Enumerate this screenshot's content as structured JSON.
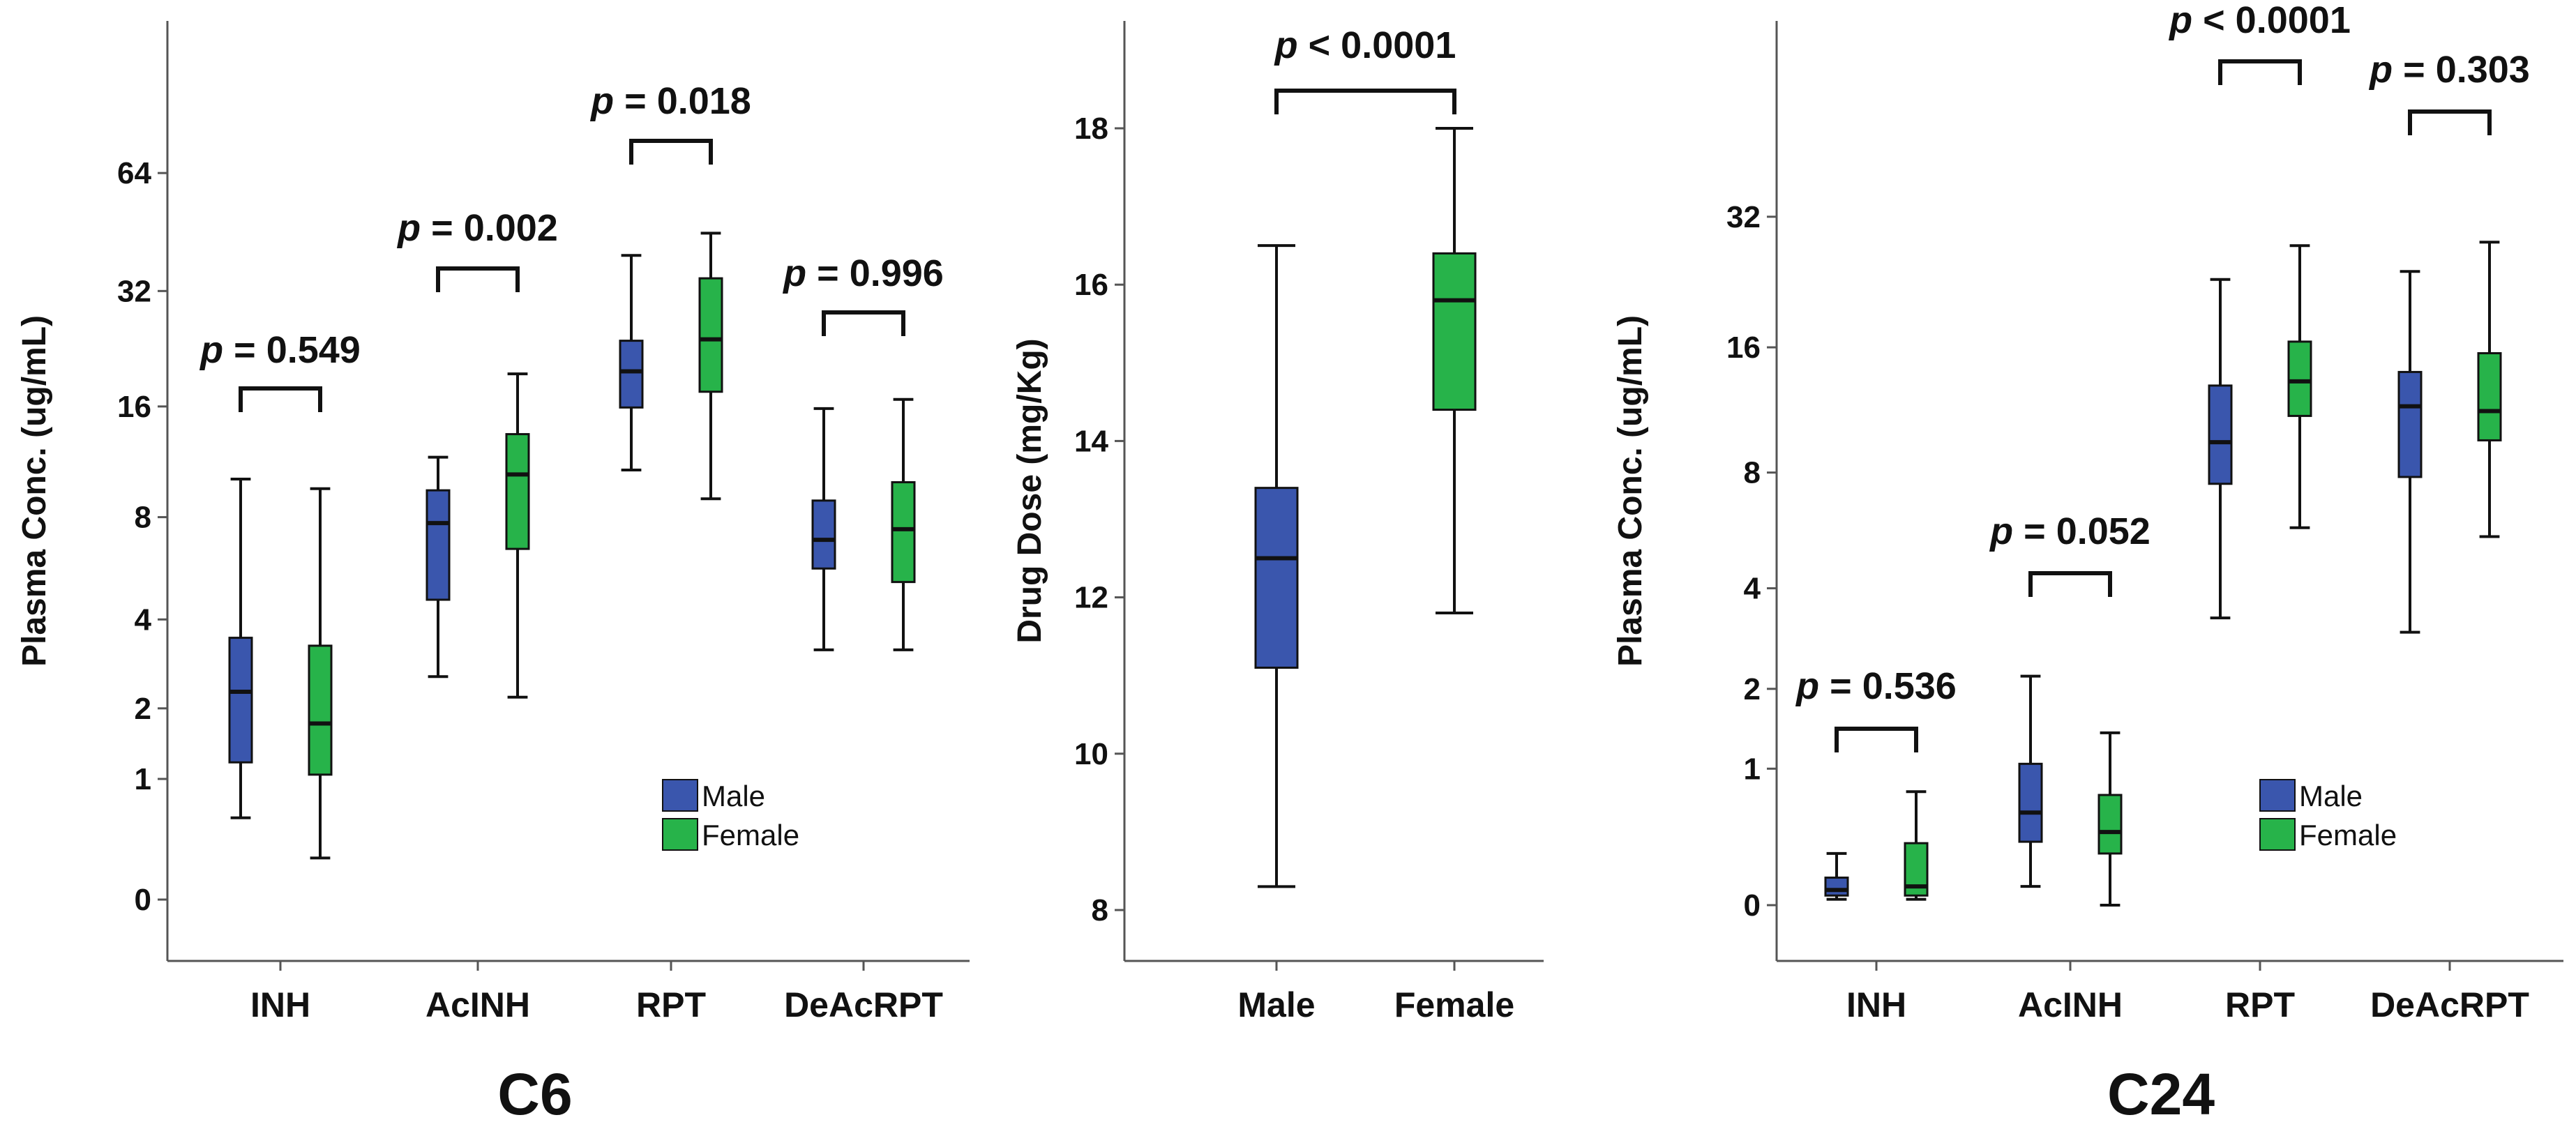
{
  "chart_data": [
    {
      "type": "boxplot",
      "title": "C6",
      "ylabel": "Plasma Conc. (ug/mL)",
      "y_scale": "log2",
      "y_ticks": [
        0,
        1,
        2,
        4,
        8,
        16,
        32,
        64
      ],
      "y_tick_labels": [
        "0",
        "1",
        "2",
        "4",
        "8",
        "16",
        "32",
        "64"
      ],
      "categories": [
        "INH",
        "AcINH",
        "RPT",
        "DeAcRPT"
      ],
      "legend": {
        "placement": "bottom-right",
        "entries": [
          "Male",
          "Female"
        ]
      },
      "groups": [
        {
          "category": "INH",
          "p_label": "p = 0.549",
          "boxes": [
            {
              "series": "Male",
              "min": 0.6,
              "q1": 1.2,
              "median": 2.3,
              "q3": 3.5,
              "max": 10.2
            },
            {
              "series": "Female",
              "min": 0.27,
              "q1": 1.05,
              "median": 1.75,
              "q3": 3.3,
              "max": 9.6
            }
          ]
        },
        {
          "category": "AcINH",
          "p_label": "p = 0.002",
          "boxes": [
            {
              "series": "Male",
              "min": 2.6,
              "q1": 4.6,
              "median": 7.7,
              "q3": 9.5,
              "max": 11.7
            },
            {
              "series": "Female",
              "min": 2.2,
              "q1": 6.5,
              "median": 10.5,
              "q3": 13.5,
              "max": 19.5
            }
          ]
        },
        {
          "category": "RPT",
          "p_label": "p = 0.018",
          "boxes": [
            {
              "series": "Male",
              "min": 10.8,
              "q1": 15.9,
              "median": 19.8,
              "q3": 23.8,
              "max": 39.5
            },
            {
              "series": "Female",
              "min": 9.0,
              "q1": 17.5,
              "median": 24.0,
              "q3": 34.5,
              "max": 45.0
            }
          ]
        },
        {
          "category": "DeAcRPT",
          "p_label": "p = 0.996",
          "boxes": [
            {
              "series": "Male",
              "min": 3.2,
              "q1": 5.7,
              "median": 6.9,
              "q3": 8.9,
              "max": 15.8
            },
            {
              "series": "Female",
              "min": 3.2,
              "q1": 5.2,
              "median": 7.4,
              "q3": 10.0,
              "max": 16.7
            }
          ]
        }
      ]
    },
    {
      "type": "boxplot",
      "title": "",
      "ylabel": "Drug Dose (mg/Kg)",
      "y_scale": "linear",
      "ylim": [
        7.5,
        18.8
      ],
      "y_ticks": [
        8,
        10,
        12,
        14,
        16,
        18
      ],
      "categories": [
        "Male",
        "Female"
      ],
      "p_label": "p < 0.0001",
      "boxes": [
        {
          "series": "Male",
          "min": 8.3,
          "q1": 11.1,
          "median": 12.5,
          "q3": 13.4,
          "max": 16.5
        },
        {
          "series": "Female",
          "min": 11.8,
          "q1": 14.4,
          "median": 15.8,
          "q3": 16.4,
          "max": 18.0
        }
      ]
    },
    {
      "type": "boxplot",
      "title": "C24",
      "ylabel": "Plasma Conc. (ug/mL)",
      "y_scale": "log2",
      "y_ticks": [
        0,
        1,
        2,
        4,
        8,
        16,
        32
      ],
      "y_tick_labels": [
        "0",
        "1",
        "2",
        "4",
        "8",
        "16",
        "32"
      ],
      "categories": [
        "INH",
        "AcINH",
        "RPT",
        "DeAcRPT"
      ],
      "legend": {
        "placement": "bottom-right",
        "entries": [
          "Male",
          "Female"
        ]
      },
      "groups": [
        {
          "category": "INH",
          "p_label": "p = 0.536",
          "boxes": [
            {
              "series": "Male",
              "min": 0.03,
              "q1": 0.05,
              "median": 0.08,
              "q3": 0.15,
              "max": 0.3
            },
            {
              "series": "Female",
              "min": 0.03,
              "q1": 0.05,
              "median": 0.1,
              "q3": 0.37,
              "max": 0.78
            }
          ]
        },
        {
          "category": "AcINH",
          "p_label": "p = 0.052",
          "boxes": [
            {
              "series": "Male",
              "min": 0.1,
              "q1": 0.38,
              "median": 0.6,
              "q3": 1.05,
              "max": 2.2
            },
            {
              "series": "Female",
              "min": 0.0,
              "q1": 0.3,
              "median": 0.45,
              "q3": 0.75,
              "max": 1.4
            }
          ]
        },
        {
          "category": "RPT",
          "p_label": "p < 0.0001",
          "boxes": [
            {
              "series": "Male",
              "min": 3.3,
              "q1": 7.5,
              "median": 9.5,
              "q3": 13.0,
              "max": 23.0
            },
            {
              "series": "Female",
              "min": 5.8,
              "q1": 11.0,
              "median": 13.3,
              "q3": 16.5,
              "max": 27.5
            }
          ]
        },
        {
          "category": "DeAcRPT",
          "p_label": "p = 0.303",
          "boxes": [
            {
              "series": "Male",
              "min": 3.0,
              "q1": 7.8,
              "median": 11.6,
              "q3": 14.0,
              "max": 24.0
            },
            {
              "series": "Female",
              "min": 5.5,
              "q1": 9.6,
              "median": 11.3,
              "q3": 15.5,
              "max": 28.0
            }
          ]
        }
      ]
    }
  ],
  "colors": {
    "male": "#3a56ad",
    "female": "#27b34a",
    "stroke": "#111111",
    "axis": "#555555"
  },
  "p_prefix": "p",
  "panel_titles": {
    "c6": "C6",
    "c24": "C24"
  }
}
